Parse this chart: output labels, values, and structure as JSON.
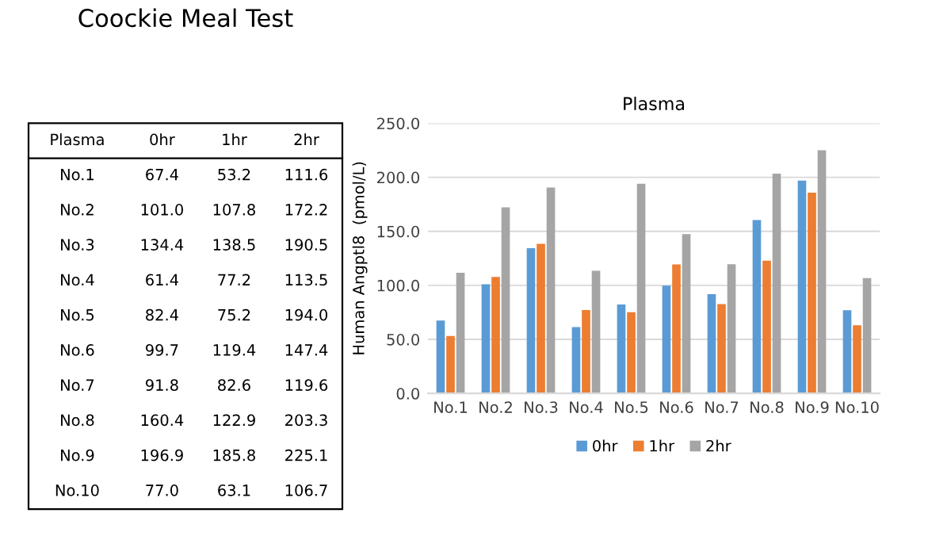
{
  "chart_data": [
    {
      "type": "heatmap",
      "title": "Plasma",
      "subtitle": "Coockie Meal Test",
      "categories": [
        "0hr",
        "1hr",
        "2hr"
      ],
      "y_categories": [
        "No.1",
        "No.2",
        "No.3",
        "No.4",
        "No.5",
        "No.6",
        "No.7",
        "No.8",
        "No.9",
        "No.10"
      ],
      "cells": [
        [
          67.4,
          53.2,
          111.6
        ],
        [
          101.0,
          107.8,
          172.2
        ],
        [
          134.4,
          138.5,
          190.5
        ],
        [
          61.4,
          77.2,
          113.5
        ],
        [
          82.4,
          75.2,
          194.0
        ],
        [
          99.7,
          119.4,
          147.4
        ],
        [
          91.8,
          82.6,
          119.6
        ],
        [
          160.4,
          122.9,
          203.3
        ],
        [
          196.9,
          185.8,
          225.1
        ],
        [
          77.0,
          63.1,
          106.7
        ]
      ],
      "data_labels": true,
      "cell_labels": [
        [
          "67.4",
          "53.2",
          "111.6"
        ],
        [
          "101.0",
          "107.8",
          "172.2"
        ],
        [
          "134.4",
          "138.5",
          "190.5"
        ],
        [
          "61.4",
          "77.2",
          "113.5"
        ],
        [
          "82.4",
          "75.2",
          "194.0"
        ],
        [
          "99.7",
          "119.4",
          "147.4"
        ],
        [
          "91.8",
          "82.6",
          "119.6"
        ],
        [
          "160.4",
          "122.9",
          "203.3"
        ],
        [
          "196.9",
          "185.8",
          "225.1"
        ],
        [
          "77.0",
          "63.1",
          "106.7"
        ]
      ]
    },
    {
      "type": "bar",
      "title": "Plasma",
      "ylabel": "Human Angptl8  (pmol/L)",
      "categories": [
        "No.1",
        "No.2",
        "No.3",
        "No.4",
        "No.5",
        "No.6",
        "No.7",
        "No.8",
        "No.9",
        "No.10"
      ],
      "series": [
        {
          "name": "0hr",
          "color": "#5b9bd5",
          "values": [
            67.4,
            101.0,
            134.4,
            61.4,
            82.4,
            99.7,
            91.8,
            160.4,
            196.9,
            77.0
          ]
        },
        {
          "name": "1hr",
          "color": "#ed7d31",
          "values": [
            53.2,
            107.8,
            138.5,
            77.2,
            75.2,
            119.4,
            82.6,
            122.9,
            185.8,
            63.1
          ]
        },
        {
          "name": "2hr",
          "color": "#a5a5a5",
          "values": [
            111.6,
            172.2,
            190.5,
            113.5,
            194.0,
            147.4,
            119.6,
            203.3,
            225.1,
            106.7
          ]
        }
      ],
      "ylim": [
        0,
        250
      ],
      "yticks": [
        {
          "value": 0,
          "label": "0.0"
        },
        {
          "value": 50,
          "label": "50.0"
        },
        {
          "value": 100,
          "label": "100.0"
        },
        {
          "value": 150,
          "label": "150.0"
        },
        {
          "value": 200,
          "label": "200.0"
        },
        {
          "value": 250,
          "label": "250.0"
        }
      ],
      "grid": "y",
      "legend": "bottom"
    }
  ]
}
